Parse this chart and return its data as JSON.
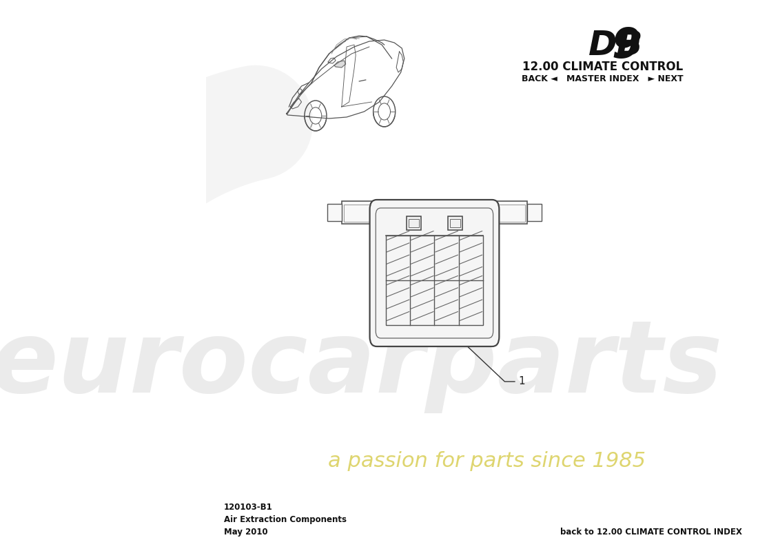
{
  "title_db9_part1": "DB",
  "title_db9_part2": "9",
  "title_section": "12.00 CLIMATE CONTROL",
  "nav_text": "BACK ◄   MASTER INDEX   ► NEXT",
  "part_number": "120103-B1",
  "part_name": "Air Extraction Components",
  "date": "May 2010",
  "bottom_nav": "back to 12.00 CLIMATE CONTROL INDEX",
  "part_label": "1",
  "bg_color": "#ffffff",
  "text_color": "#1a1a1a",
  "line_color": "#444444",
  "wm_grey": "#c8c8c8",
  "wm_yellow": "#d4c840"
}
